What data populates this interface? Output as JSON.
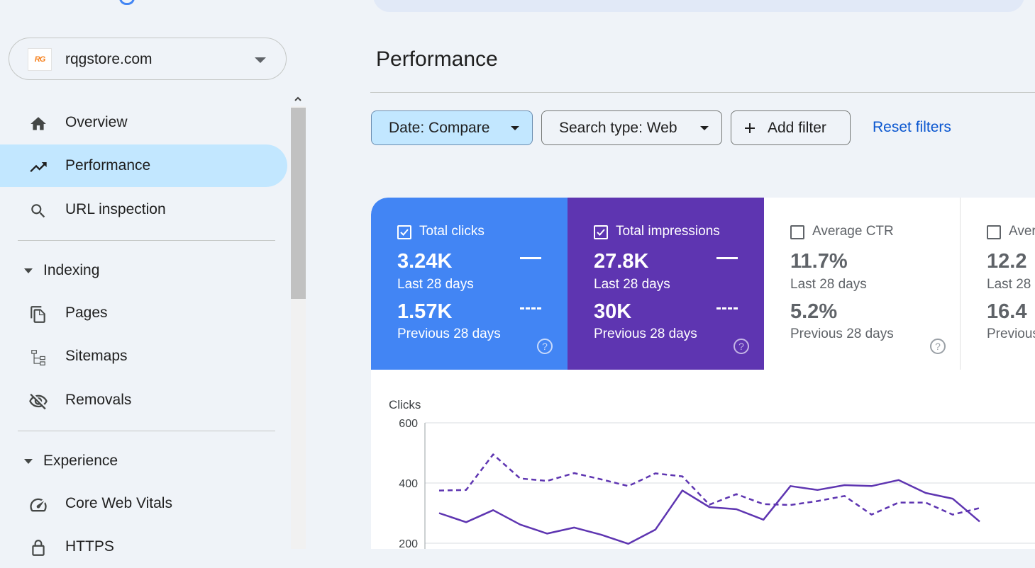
{
  "property": {
    "name": "rqgstore.com",
    "favicon_text": "RG"
  },
  "sidebar": {
    "items": [
      {
        "label": "Overview",
        "icon": "home-icon"
      },
      {
        "label": "Performance",
        "icon": "trending-up-icon",
        "active": true
      },
      {
        "label": "URL inspection",
        "icon": "search-icon"
      }
    ],
    "sections": [
      {
        "label": "Indexing",
        "items": [
          {
            "label": "Pages",
            "icon": "pages-icon"
          },
          {
            "label": "Sitemaps",
            "icon": "sitemap-icon"
          },
          {
            "label": "Removals",
            "icon": "eye-off-icon"
          }
        ]
      },
      {
        "label": "Experience",
        "items": [
          {
            "label": "Core Web Vitals",
            "icon": "speed-icon"
          },
          {
            "label": "HTTPS",
            "icon": "lock-icon"
          }
        ]
      }
    ]
  },
  "main": {
    "title": "Performance",
    "filters": {
      "date": "Date: Compare",
      "search_type": "Search type: Web",
      "add_filter": "Add filter",
      "reset": "Reset filters"
    },
    "metrics": [
      {
        "label": "Total clicks",
        "checked": true,
        "current": "3.24K",
        "current_period": "Last 28 days",
        "previous": "1.57K",
        "previous_period": "Previous 28 days",
        "color": "#4285f4"
      },
      {
        "label": "Total impressions",
        "checked": true,
        "current": "27.8K",
        "current_period": "Last 28 days",
        "previous": "30K",
        "previous_period": "Previous 28 days",
        "color": "#5e35b1"
      },
      {
        "label": "Average CTR",
        "checked": false,
        "current": "11.7%",
        "current_period": "Last 28 days",
        "previous": "5.2%",
        "previous_period": "Previous 28 days",
        "color": "#ffffff"
      },
      {
        "label": "Aver",
        "checked": false,
        "current": "12.2",
        "current_period": "Last 28",
        "previous": "16.4",
        "previous_period": "Previous",
        "color": "#ffffff"
      }
    ]
  },
  "colors": {
    "accent": "#0b57d0",
    "active_nav": "#c2e7ff",
    "chart_line": "#5e35b1"
  },
  "chart_data": {
    "type": "line",
    "ylabel": "Clicks",
    "y_ticks": [
      600,
      400,
      200
    ],
    "ylim": [
      200,
      600
    ],
    "series": [
      {
        "style": "solid",
        "values": [
          300,
          270,
          310,
          262,
          232,
          252,
          228,
          198,
          245,
          375,
          320,
          313,
          278,
          390,
          377,
          393,
          390,
          410,
          367,
          348,
          272
        ]
      },
      {
        "style": "dashed",
        "values": [
          375,
          377,
          495,
          415,
          407,
          433,
          412,
          390,
          432,
          422,
          328,
          363,
          330,
          327,
          340,
          357,
          295,
          335,
          335,
          295,
          317
        ]
      }
    ]
  }
}
